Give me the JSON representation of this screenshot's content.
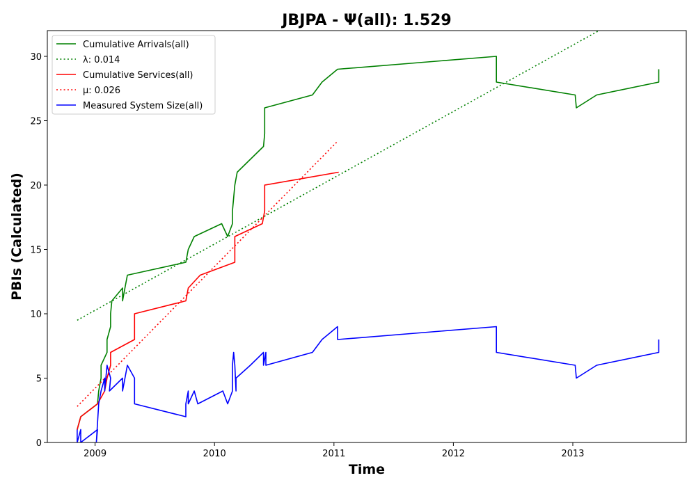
{
  "chart_data": {
    "type": "line",
    "title": "JBJPA -  Ψ(all): 1.529",
    "xlabel": "Time",
    "ylabel": "PBIs (Calculated)",
    "xlim": [
      2008.6,
      2013.95
    ],
    "ylim": [
      0,
      32
    ],
    "x_ticks": [
      2009,
      2010,
      2011,
      2012,
      2013
    ],
    "x_tick_labels": [
      "2009",
      "2010",
      "2011",
      "2012",
      "2013"
    ],
    "y_ticks": [
      0,
      5,
      10,
      15,
      20,
      25,
      30
    ],
    "y_tick_labels": [
      "0",
      "5",
      "10",
      "15",
      "20",
      "25",
      "30"
    ],
    "grid": false,
    "legend_position": "upper-left",
    "series": [
      {
        "name": "Cumulative Arrivals(all)",
        "legend_label": "Cumulative Arrivals(all)",
        "color": "#008000",
        "style": "solid",
        "points": [
          [
            2008.85,
            1
          ],
          [
            2008.88,
            2
          ],
          [
            2009.02,
            3
          ],
          [
            2009.03,
            4
          ],
          [
            2009.05,
            5
          ],
          [
            2009.05,
            6
          ],
          [
            2009.1,
            7
          ],
          [
            2009.1,
            8
          ],
          [
            2009.13,
            9
          ],
          [
            2009.13,
            10
          ],
          [
            2009.14,
            11
          ],
          [
            2009.23,
            12
          ],
          [
            2009.23,
            11
          ],
          [
            2009.25,
            12
          ],
          [
            2009.27,
            13
          ],
          [
            2009.76,
            14
          ],
          [
            2009.78,
            15
          ],
          [
            2009.83,
            16
          ],
          [
            2010.06,
            17
          ],
          [
            2010.11,
            16
          ],
          [
            2010.15,
            17
          ],
          [
            2010.15,
            18
          ],
          [
            2010.16,
            19
          ],
          [
            2010.17,
            20
          ],
          [
            2010.19,
            21
          ],
          [
            2010.3,
            22
          ],
          [
            2010.41,
            23
          ],
          [
            2010.42,
            24
          ],
          [
            2010.42,
            25
          ],
          [
            2010.42,
            26
          ],
          [
            2010.82,
            27
          ],
          [
            2010.9,
            28
          ],
          [
            2011.03,
            29
          ],
          [
            2012.36,
            30
          ],
          [
            2012.36,
            28
          ],
          [
            2013.02,
            27
          ],
          [
            2013.03,
            26
          ],
          [
            2013.2,
            27
          ],
          [
            2013.72,
            28
          ],
          [
            2013.72,
            29
          ]
        ]
      },
      {
        "name": "λ",
        "legend_label": "λ: 0.014",
        "color": "#008000",
        "style": "dotted",
        "points": [
          [
            2008.85,
            9.5
          ],
          [
            2013.22,
            32
          ]
        ]
      },
      {
        "name": "Cumulative Services(all)",
        "legend_label": "Cumulative Services(all)",
        "color": "#ff0000",
        "style": "solid",
        "points": [
          [
            2008.85,
            1
          ],
          [
            2008.88,
            2
          ],
          [
            2009.02,
            3
          ],
          [
            2009.08,
            4
          ],
          [
            2009.1,
            5
          ],
          [
            2009.13,
            6
          ],
          [
            2009.13,
            7
          ],
          [
            2009.33,
            8
          ],
          [
            2009.33,
            9
          ],
          [
            2009.33,
            10
          ],
          [
            2009.76,
            11
          ],
          [
            2009.78,
            12
          ],
          [
            2009.88,
            13
          ],
          [
            2010.17,
            14
          ],
          [
            2010.17,
            15
          ],
          [
            2010.17,
            16
          ],
          [
            2010.4,
            17
          ],
          [
            2010.42,
            18
          ],
          [
            2010.42,
            19
          ],
          [
            2010.42,
            20
          ],
          [
            2011.04,
            21
          ]
        ]
      },
      {
        "name": "μ",
        "legend_label": "μ: 0.026",
        "color": "#ff0000",
        "style": "dotted",
        "points": [
          [
            2008.85,
            2.8
          ],
          [
            2011.03,
            23.4
          ]
        ]
      },
      {
        "name": "Measured System Size(all)",
        "legend_label": "Measured System Size(all)",
        "color": "#0000ff",
        "style": "solid",
        "points": [
          [
            2008.85,
            1
          ],
          [
            2008.85,
            0
          ],
          [
            2008.88,
            1
          ],
          [
            2008.88,
            0
          ],
          [
            2009.02,
            1
          ],
          [
            2009.01,
            0
          ],
          [
            2009.03,
            3
          ],
          [
            2009.05,
            4
          ],
          [
            2009.08,
            5
          ],
          [
            2009.08,
            4
          ],
          [
            2009.1,
            6
          ],
          [
            2009.13,
            5
          ],
          [
            2009.12,
            4
          ],
          [
            2009.23,
            5
          ],
          [
            2009.23,
            4
          ],
          [
            2009.27,
            6
          ],
          [
            2009.33,
            5
          ],
          [
            2009.33,
            3
          ],
          [
            2009.76,
            2
          ],
          [
            2009.76,
            3
          ],
          [
            2009.78,
            4
          ],
          [
            2009.78,
            3
          ],
          [
            2009.83,
            4
          ],
          [
            2009.86,
            3
          ],
          [
            2010.07,
            4
          ],
          [
            2010.11,
            3
          ],
          [
            2010.15,
            4
          ],
          [
            2010.15,
            6
          ],
          [
            2010.16,
            7
          ],
          [
            2010.17,
            6
          ],
          [
            2010.18,
            4
          ],
          [
            2010.18,
            5
          ],
          [
            2010.3,
            6
          ],
          [
            2010.41,
            7
          ],
          [
            2010.41,
            6
          ],
          [
            2010.43,
            7
          ],
          [
            2010.43,
            6
          ],
          [
            2010.82,
            7
          ],
          [
            2010.9,
            8
          ],
          [
            2011.03,
            9
          ],
          [
            2011.03,
            8
          ],
          [
            2012.36,
            9
          ],
          [
            2012.36,
            7
          ],
          [
            2013.02,
            6
          ],
          [
            2013.03,
            5
          ],
          [
            2013.2,
            6
          ],
          [
            2013.72,
            7
          ],
          [
            2013.72,
            8
          ]
        ]
      }
    ]
  }
}
